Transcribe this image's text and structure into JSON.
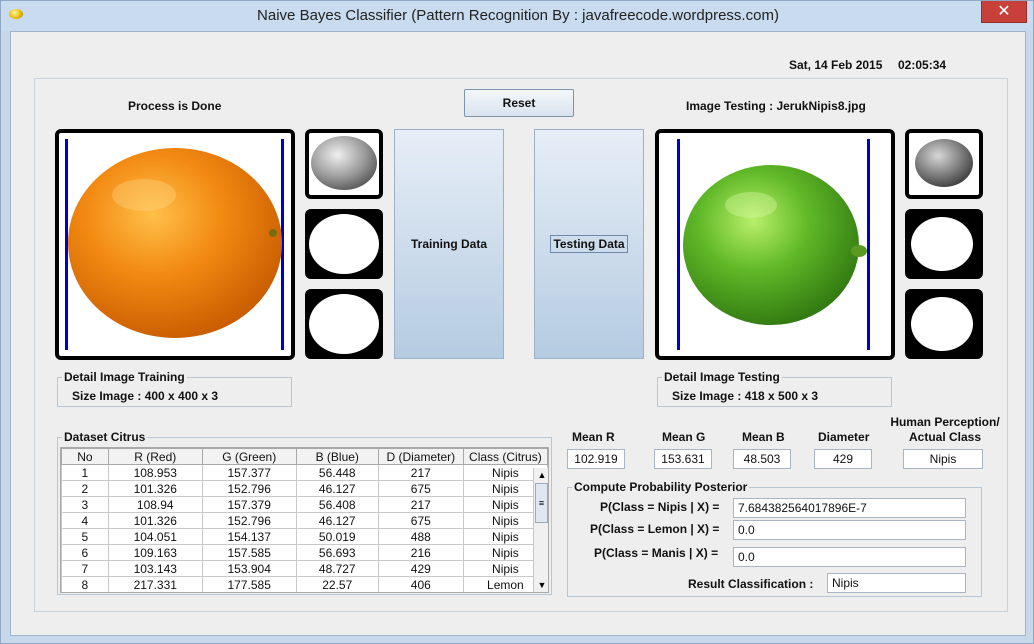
{
  "window": {
    "title": "Naive Bayes Classifier (Pattern Recognition By : javafreecode.wordpress.com)",
    "close_label": "✕"
  },
  "header": {
    "date": "Sat, 14 Feb 2015",
    "time": "02:05:34"
  },
  "status": {
    "process_label": "Process is Done"
  },
  "toolbar": {
    "reset_label": "Reset"
  },
  "testing": {
    "image_label": "Image Testing : JerukNipis8.jpg"
  },
  "buttons": {
    "training_label": "Training Data",
    "testing_label": "Testing Data"
  },
  "detail_training": {
    "title": "Detail Image Training",
    "size": "Size Image : 400 x 400 x 3"
  },
  "detail_testing": {
    "title": "Detail Image Testing",
    "size": "Size Image : 418 x 500 x 3"
  },
  "dataset": {
    "title": "Dataset Citrus",
    "columns": [
      "No",
      "R (Red)",
      "G (Green)",
      "B (Blue)",
      "D (Diameter)",
      "Class (Citrus)"
    ],
    "rows": [
      [
        "1",
        "108.953",
        "157.377",
        "56.448",
        "217",
        "Nipis"
      ],
      [
        "2",
        "101.326",
        "152.796",
        "46.127",
        "675",
        "Nipis"
      ],
      [
        "3",
        "108.94",
        "157.379",
        "56.408",
        "217",
        "Nipis"
      ],
      [
        "4",
        "101.326",
        "152.796",
        "46.127",
        "675",
        "Nipis"
      ],
      [
        "5",
        "104.051",
        "154.137",
        "50.019",
        "488",
        "Nipis"
      ],
      [
        "6",
        "109.163",
        "157.585",
        "56.693",
        "216",
        "Nipis"
      ],
      [
        "7",
        "103.143",
        "153.904",
        "48.727",
        "429",
        "Nipis"
      ],
      [
        "8",
        "217.331",
        "177.585",
        "22.57",
        "406",
        "Lemon"
      ]
    ]
  },
  "means": {
    "mean_r_label": "Mean R",
    "mean_r": "102.919",
    "mean_g_label": "Mean G",
    "mean_g": "153.631",
    "mean_b_label": "Mean B",
    "mean_b": "48.503",
    "diameter_label": "Diameter",
    "diameter": "429",
    "perception_label_1": "Human Perception/",
    "perception_label_2": "Actual Class",
    "actual_class": "Nipis"
  },
  "posterior": {
    "title": "Compute Probability Posterior",
    "nipis_label": "P(Class = Nipis | X) =",
    "nipis_value": "7.684382564017896E-7",
    "lemon_label": "P(Class = Lemon | X) =",
    "lemon_value": "0.0",
    "manis_label": "P(Class = Manis | X) =",
    "manis_value": "0.0",
    "result_label": "Result Classification :",
    "result_value": "Nipis"
  },
  "colors": {
    "orange": "#f08a12",
    "lime": "#5fb827",
    "frame_line": "#0000cc",
    "close": "#c7403a"
  }
}
